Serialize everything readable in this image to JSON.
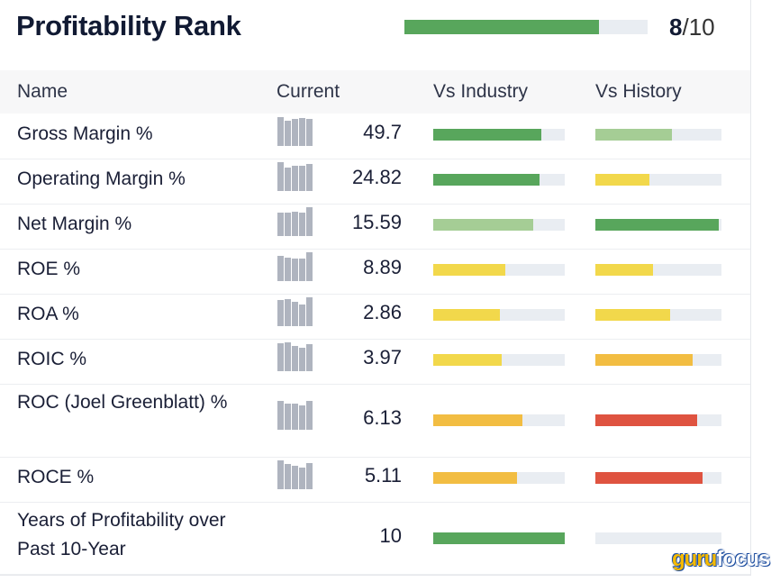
{
  "title": "Profitability Rank",
  "rank": {
    "value": "8",
    "max": "/10",
    "fraction": 0.8,
    "color": "#58a65c"
  },
  "columns": {
    "name": "Name",
    "current": "Current",
    "industry": "Vs Industry",
    "history": "Vs History"
  },
  "colors": {
    "green": "#58a65c",
    "lightgreen": "#a5cd95",
    "yellow": "#f2d84b",
    "orange": "#f2bd42",
    "red": "#df5340",
    "track": "#e9edf2"
  },
  "rows": [
    {
      "name": "Gross Margin %",
      "value": "49.7",
      "spark": [
        32,
        28,
        30,
        31,
        30
      ],
      "industry": 0.82,
      "industry_color": "green",
      "history": 0.61,
      "history_color": "lightgreen"
    },
    {
      "name": "Operating Margin %",
      "value": "24.82",
      "spark": [
        32,
        26,
        28,
        28,
        30
      ],
      "industry": 0.81,
      "industry_color": "green",
      "history": 0.43,
      "history_color": "yellow"
    },
    {
      "name": "Net Margin %",
      "value": "15.59",
      "spark": [
        26,
        26,
        27,
        26,
        32
      ],
      "industry": 0.76,
      "industry_color": "lightgreen",
      "history": 0.98,
      "history_color": "green"
    },
    {
      "name": "ROE %",
      "value": "8.89",
      "spark": [
        28,
        26,
        25,
        25,
        32
      ],
      "industry": 0.55,
      "industry_color": "yellow",
      "history": 0.46,
      "history_color": "yellow"
    },
    {
      "name": "ROA %",
      "value": "2.86",
      "spark": [
        29,
        30,
        27,
        24,
        32
      ],
      "industry": 0.51,
      "industry_color": "yellow",
      "history": 0.59,
      "history_color": "yellow"
    },
    {
      "name": "ROIC %",
      "value": "3.97",
      "spark": [
        31,
        32,
        28,
        26,
        30
      ],
      "industry": 0.52,
      "industry_color": "yellow",
      "history": 0.77,
      "history_color": "orange"
    },
    {
      "name": "ROC (Joel Greenblatt) %",
      "value": "6.13",
      "spark": [
        32,
        29,
        29,
        27,
        32
      ],
      "industry": 0.68,
      "industry_color": "orange",
      "history": 0.81,
      "history_color": "red"
    },
    {
      "name": "ROCE %",
      "value": "5.11",
      "spark": [
        32,
        28,
        26,
        24,
        29
      ],
      "industry": 0.64,
      "industry_color": "orange",
      "history": 0.85,
      "history_color": "red"
    },
    {
      "name": "Years of Profitability over Past 10-Year",
      "value": "10",
      "spark": null,
      "industry": 1.0,
      "industry_color": "green",
      "history": 0,
      "history_color": "green"
    }
  ],
  "logo": {
    "part1": "guru",
    "part2": "focus"
  }
}
